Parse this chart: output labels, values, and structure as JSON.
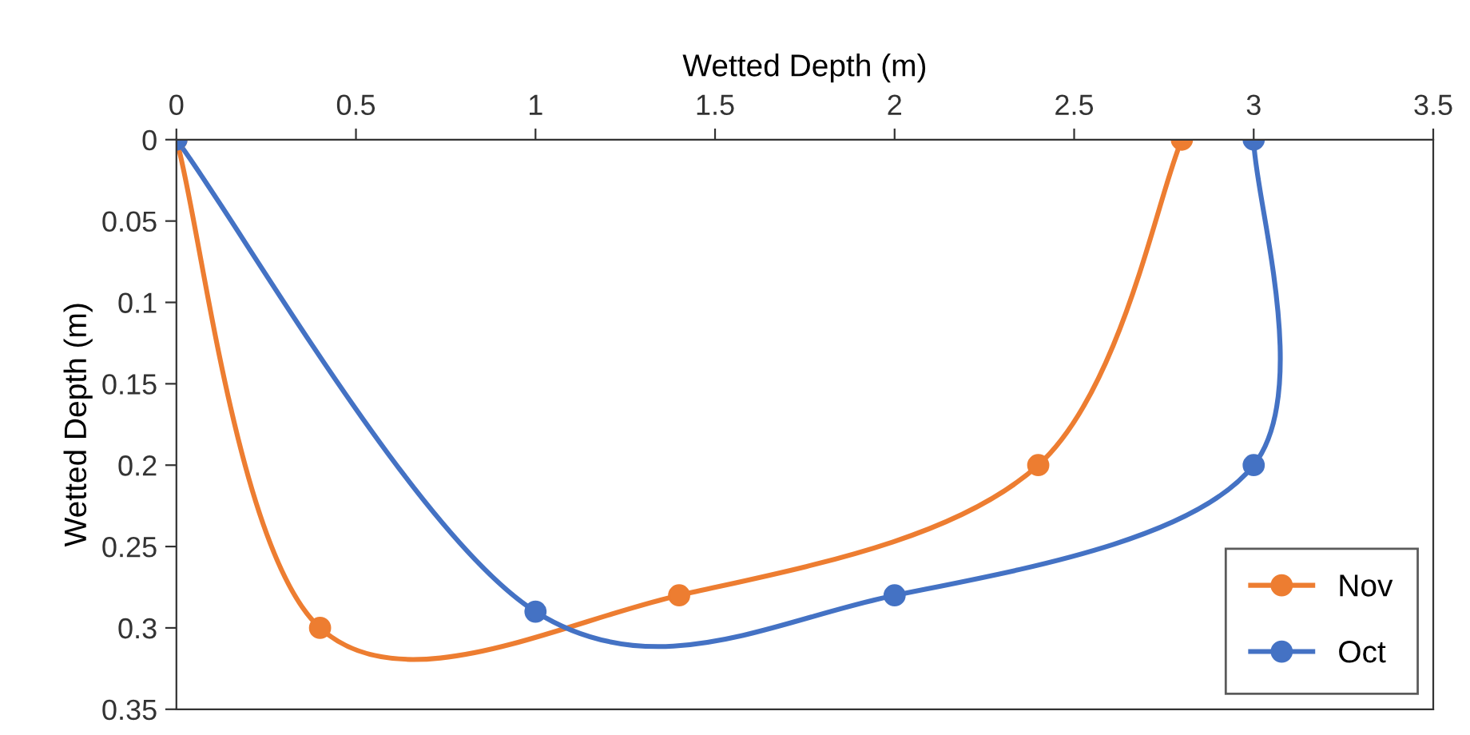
{
  "chart_data": {
    "type": "line",
    "xlabel": "Wetted Depth (m)",
    "ylabel": "Wetted Depth (m)",
    "xlim": [
      0,
      3.5
    ],
    "xticks": [
      0,
      0.5,
      1,
      1.5,
      2,
      2.5,
      3,
      3.5
    ],
    "ylim": [
      0.35,
      0
    ],
    "yticks": [
      0,
      0.05,
      0.1,
      0.15,
      0.2,
      0.25,
      0.3,
      0.35
    ],
    "marker": "circle",
    "grid": false,
    "legend": "bottom right",
    "series": [
      {
        "name": "Nov",
        "color": "#ed7d31",
        "x": [
          0,
          0.4,
          1.4,
          2.4,
          2.8
        ],
        "values": [
          0,
          0.3,
          0.28,
          0.2,
          0
        ]
      },
      {
        "name": "Oct",
        "color": "#4472c4",
        "x": [
          0,
          1,
          2,
          3,
          3
        ],
        "values": [
          0,
          0.29,
          0.28,
          0.2,
          0
        ]
      }
    ]
  }
}
